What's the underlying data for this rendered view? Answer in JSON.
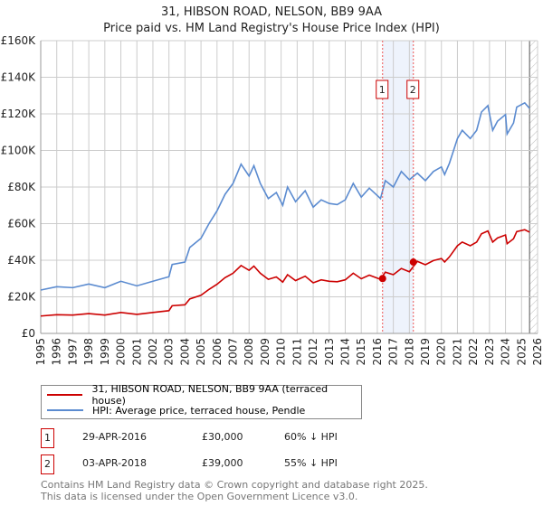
{
  "chart_data": {
    "type": "line",
    "title": "31, HIBSON ROAD, NELSON, BB9 9AA",
    "subtitle": "Price paid vs. HM Land Registry's House Price Index (HPI)",
    "xlim": [
      1995,
      2026
    ],
    "ylim": [
      0,
      160000
    ],
    "y_ticks": [
      0,
      20000,
      40000,
      60000,
      80000,
      100000,
      120000,
      140000,
      160000
    ],
    "y_tick_labels": [
      "£0",
      "£20K",
      "£40K",
      "£60K",
      "£80K",
      "£100K",
      "£120K",
      "£140K",
      "£160K"
    ],
    "x_ticks": [
      "1995",
      "1996",
      "1997",
      "1998",
      "1999",
      "2000",
      "2001",
      "2002",
      "2003",
      "2004",
      "2005",
      "2006",
      "2007",
      "2008",
      "2009",
      "2010",
      "2011",
      "2012",
      "2013",
      "2014",
      "2015",
      "2016",
      "2017",
      "2018",
      "2019",
      "2020",
      "2021",
      "2022",
      "2023",
      "2024",
      "2025",
      "2026"
    ],
    "grid": true,
    "legend_placement": "below",
    "series": [
      {
        "name": "31, HIBSON ROAD, NELSON, BB9 9AA (terraced house)",
        "color": "#cc0000"
      },
      {
        "name": "HPI: Average price, terraced house, Pendle",
        "color": "#5b8bd0",
        "x": [
          1995,
          1996,
          1997,
          1998,
          1999,
          2000,
          2001,
          2002,
          2003,
          2003.2,
          2004,
          2004.3,
          2005,
          2005.5,
          2006,
          2006.5,
          2007,
          2007.5,
          2008,
          2008.3,
          2008.7,
          2009.2,
          2009.7,
          2010.1,
          2010.4,
          2010.9,
          2011.5,
          2012,
          2012.5,
          2013,
          2013.5,
          2014,
          2014.5,
          2015,
          2015.5,
          2016.2,
          2016.5,
          2017,
          2017.5,
          2018,
          2018.5,
          2019,
          2019.5,
          2020,
          2020.2,
          2020.5,
          2021,
          2021.3,
          2021.8,
          2022.2,
          2022.5,
          2022.9,
          2023.2,
          2023.5,
          2024,
          2024.1,
          2024.5,
          2024.7,
          2025.2,
          2025.5
        ],
        "y": [
          23700,
          25500,
          25000,
          27000,
          25000,
          28500,
          26000,
          28500,
          31000,
          37700,
          39000,
          47000,
          52000,
          60000,
          67000,
          76000,
          82000,
          92500,
          86000,
          91700,
          82000,
          73700,
          77000,
          70000,
          80000,
          72000,
          78000,
          69000,
          73000,
          71000,
          70400,
          73000,
          82000,
          74500,
          79400,
          73700,
          83500,
          80000,
          88500,
          84000,
          87600,
          83500,
          88500,
          91000,
          86800,
          93000,
          106500,
          111000,
          106500,
          111000,
          121000,
          124500,
          111000,
          116000,
          119600,
          109000,
          115000,
          123700,
          126000,
          123000
        ]
      }
    ],
    "sales": [
      {
        "label": "1",
        "x": 2016.33,
        "date": "29-APR-2016",
        "price": 30000,
        "price_text": "£30,000",
        "hpi_text": "60% ↓ HPI"
      },
      {
        "label": "2",
        "x": 2018.25,
        "date": "03-APR-2018",
        "price": 39000,
        "price_text": "£39,000",
        "hpi_text": "55% ↓ HPI"
      }
    ],
    "forecast_from": 2025.5
  },
  "footer": [
    "Contains HM Land Registry data © Crown copyright and database right 2025.",
    "This data is licensed under the Open Government Licence v3.0."
  ]
}
